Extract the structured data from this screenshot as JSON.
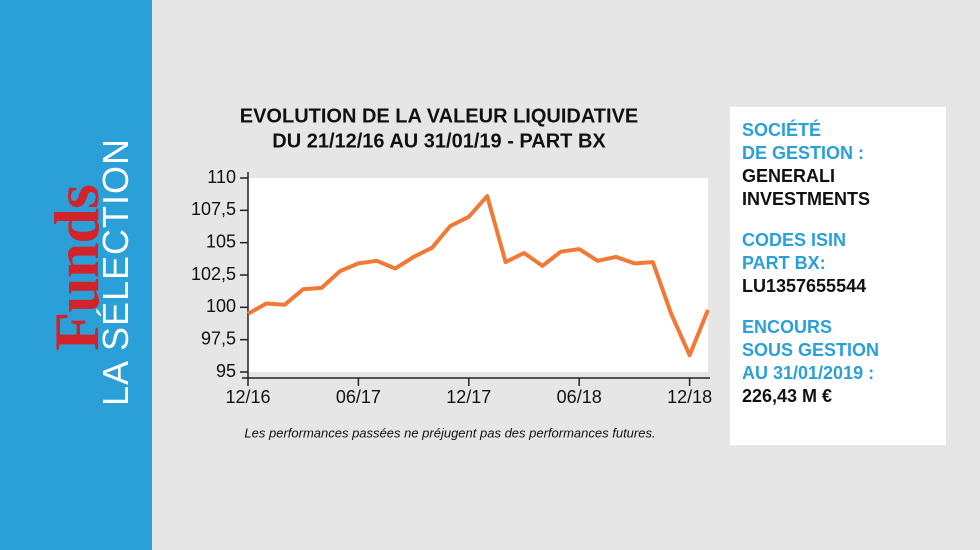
{
  "sidebar": {
    "brand": "Funds",
    "subtitle": "LA SÉLECTION"
  },
  "chart_data": {
    "type": "line",
    "title": "EVOLUTION DE LA VALEUR LIQUIDATIVE",
    "subtitle": "DU 21/12/16 AU 31/01/19 - PART BX",
    "note": "Les performances passées ne préjugent pas des performances futures.",
    "categories": [
      "12/16",
      null,
      null,
      null,
      null,
      null,
      "06/17",
      null,
      null,
      null,
      null,
      null,
      "12/17",
      null,
      null,
      null,
      null,
      null,
      "06/18",
      null,
      null,
      null,
      null,
      null,
      "12/18",
      null
    ],
    "values": [
      99.5,
      100.3,
      100.2,
      101.4,
      101.5,
      102.8,
      103.4,
      103.6,
      103.0,
      103.9,
      104.6,
      106.3,
      107.0,
      108.6,
      103.5,
      104.2,
      103.2,
      104.3,
      104.5,
      103.6,
      103.9,
      103.4,
      103.5,
      99.5,
      96.3,
      99.8
    ],
    "color": "#f07a35",
    "ylim": [
      95,
      110
    ],
    "yticks": [
      95,
      {
        "value": 97.5,
        "label": "97,5"
      },
      100,
      {
        "value": 102.5,
        "label": "102,5"
      },
      105,
      {
        "value": 107.5,
        "label": "107,5"
      },
      110
    ]
  },
  "info": [
    {
      "label": [
        "SOCIÉTÉ",
        "DE GESTION :"
      ],
      "value": [
        "GENERALI",
        "INVESTMENTS"
      ]
    },
    {
      "label": [
        "CODES ISIN",
        "PART BX:"
      ],
      "value": [
        "LU1357655544"
      ]
    },
    {
      "label": [
        "ENCOURS",
        "SOUS GESTION",
        "AU 31/01/2019 :"
      ],
      "value": [
        "226,43 M €"
      ]
    }
  ]
}
